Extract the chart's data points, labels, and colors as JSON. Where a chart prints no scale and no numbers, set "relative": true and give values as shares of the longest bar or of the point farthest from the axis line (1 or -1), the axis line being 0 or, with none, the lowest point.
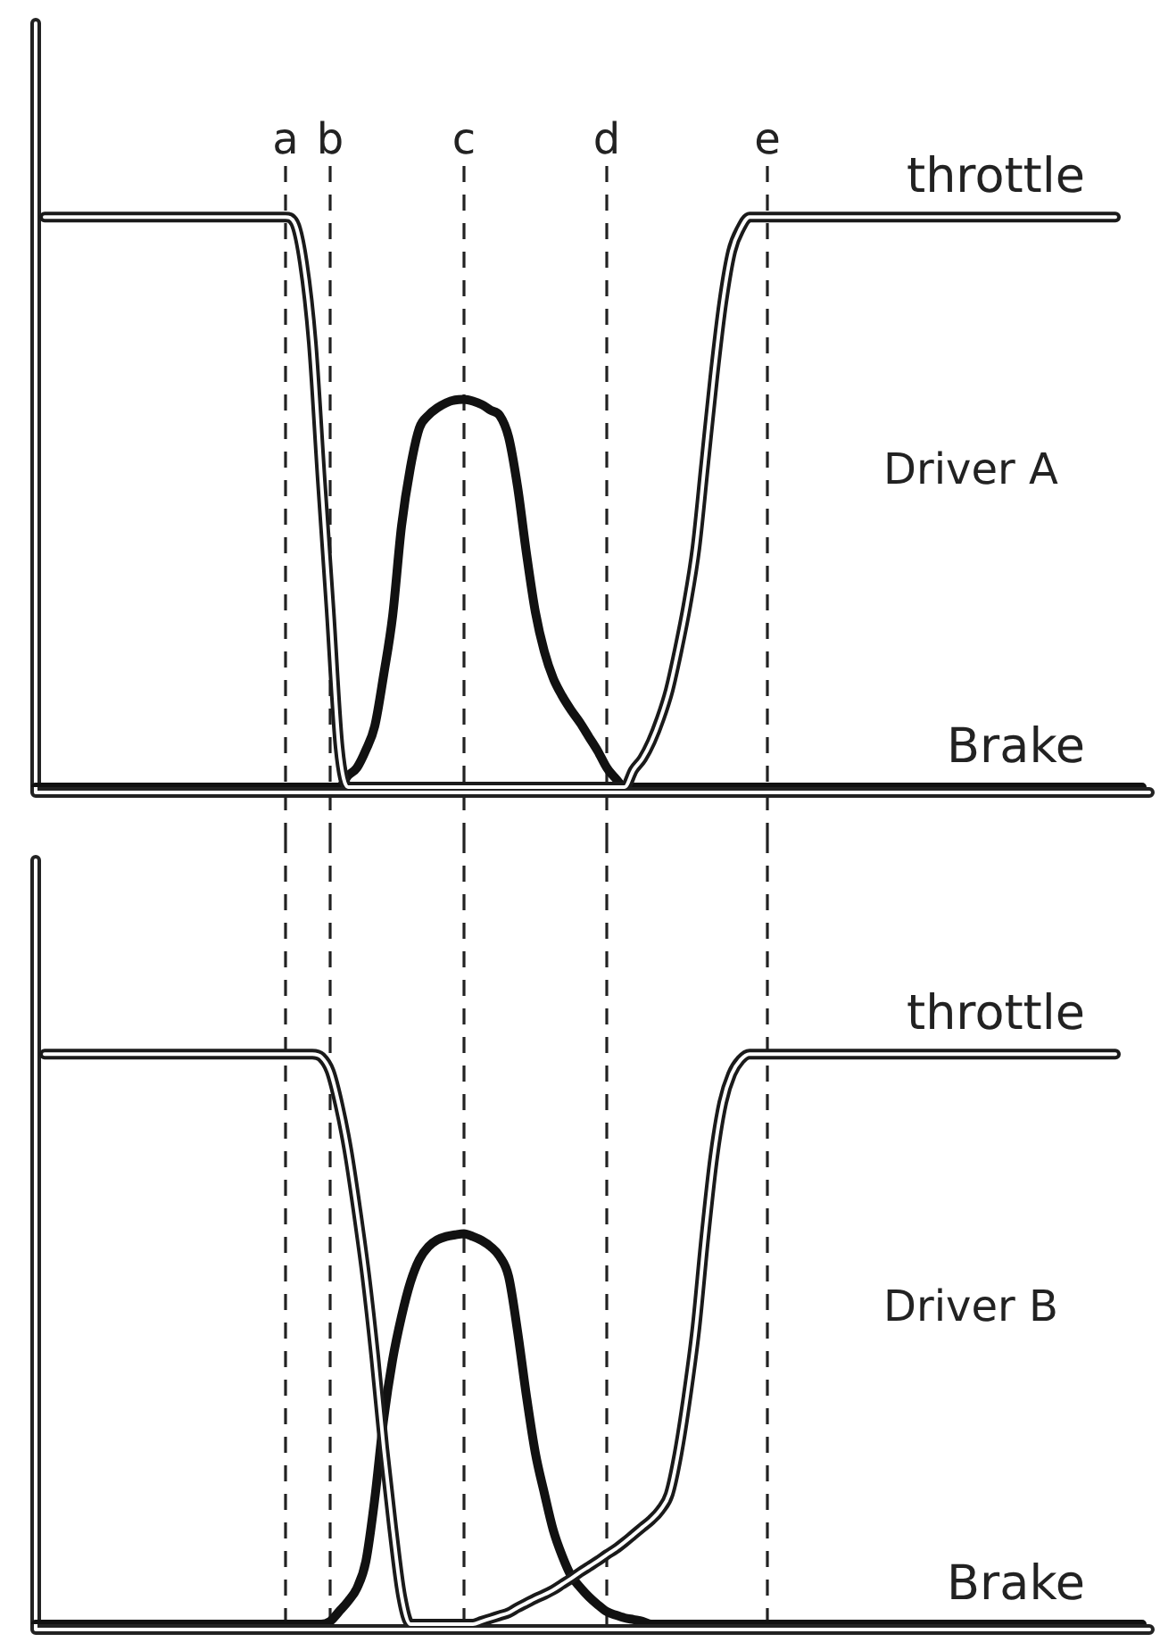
{
  "chart_data": [
    {
      "type": "line",
      "title": "Driver A",
      "relative": true,
      "legend": false,
      "grid": false,
      "marker": "none",
      "tick_labels": false,
      "annotations": [
        "a",
        "b",
        "c",
        "d",
        "e"
      ],
      "categories": [
        null,
        null,
        null,
        null,
        null,
        null,
        null,
        null,
        null,
        null,
        null,
        null,
        null,
        null,
        null,
        null,
        null,
        null,
        null,
        null,
        null,
        null,
        null,
        null,
        null,
        null,
        null,
        null,
        null,
        null,
        null,
        null,
        null,
        null,
        null,
        null,
        null,
        null,
        null,
        null,
        null,
        null,
        null,
        null,
        null,
        null,
        null,
        null,
        null,
        null,
        null,
        null,
        null,
        null,
        null,
        null,
        null,
        null,
        null,
        null,
        null,
        null,
        null,
        null,
        null,
        null,
        null,
        null,
        null,
        null,
        null,
        null,
        null,
        null,
        null,
        null,
        null,
        null,
        null,
        null,
        null,
        null,
        null,
        null,
        null,
        null,
        null,
        null,
        null,
        null,
        null,
        null,
        null,
        null,
        null,
        null,
        null,
        null,
        null,
        null,
        null,
        null,
        null,
        null,
        null,
        null,
        null,
        null,
        null,
        null,
        null,
        null,
        null,
        null,
        null,
        null,
        null,
        null,
        null,
        null,
        null,
        null,
        null,
        null,
        null
      ],
      "series": [
        {
          "name": "throttle",
          "color": "#1a1a1a",
          "values": [
            null,
            1,
            1,
            1,
            1,
            1,
            1,
            1,
            1,
            1,
            1,
            1,
            1,
            1,
            1,
            1,
            1,
            1,
            1,
            1,
            1,
            1,
            1,
            1,
            1,
            1,
            1,
            1,
            1,
            0.99,
            0.92,
            0.78,
            0.54,
            0.31,
            0.07,
            0,
            0,
            0,
            0,
            0,
            0,
            0,
            0,
            0,
            0,
            0,
            0,
            0,
            0,
            0,
            0,
            0,
            0,
            0,
            0,
            0,
            0,
            0,
            0,
            0,
            0,
            0,
            0,
            0,
            0,
            0,
            0,
            0.03,
            0.05,
            0.08,
            0.12,
            0.17,
            0.24,
            0.32,
            0.42,
            0.57,
            0.72,
            0.85,
            0.94,
            0.98,
            1,
            1,
            1,
            1,
            1,
            1,
            1,
            1,
            1,
            1,
            1,
            1,
            1,
            1,
            1,
            1,
            1,
            1,
            1,
            1,
            1,
            1,
            1,
            1,
            1,
            1,
            1,
            1,
            1,
            1,
            1,
            1,
            1,
            1,
            1,
            1,
            1,
            1,
            1,
            1,
            1,
            1,
            null,
            null,
            null
          ]
        },
        {
          "name": "Brake",
          "color": "#111111",
          "values": [
            0,
            0,
            0,
            0,
            0,
            0,
            0,
            0,
            0,
            0,
            0,
            0,
            0,
            0,
            0,
            0,
            0,
            0,
            0,
            0,
            0,
            0,
            0,
            0,
            0,
            0,
            0,
            0,
            0,
            0,
            0,
            0,
            0,
            0,
            0,
            0.02,
            0.034,
            0.065,
            0.107,
            0.197,
            0.3,
            0.458,
            0.561,
            0.63,
            0.652,
            0.665,
            0.674,
            0.679,
            0.68,
            0.677,
            0.671,
            0.661,
            0.652,
            0.614,
            0.527,
            0.41,
            0.307,
            0.238,
            0.191,
            0.16,
            0.135,
            0.113,
            0.088,
            0.063,
            0.034,
            0.015,
            0,
            0,
            0,
            0,
            0,
            0,
            0,
            0,
            0,
            0,
            0,
            0,
            0,
            0,
            0,
            0,
            0,
            0,
            0,
            0,
            0,
            0,
            0,
            0,
            0,
            0,
            0,
            0,
            0,
            0,
            0,
            0,
            0,
            0,
            0,
            0,
            0,
            0,
            0,
            0,
            0,
            0,
            0,
            0,
            0,
            0,
            0,
            0,
            0,
            0,
            0,
            0,
            0,
            0,
            0,
            0,
            0,
            0,
            0
          ]
        }
      ]
    },
    {
      "type": "line",
      "title": "Driver B",
      "relative": true,
      "legend": false,
      "grid": false,
      "marker": "none",
      "tick_labels": false,
      "categories": [
        null,
        null,
        null,
        null,
        null,
        null,
        null,
        null,
        null,
        null,
        null,
        null,
        null,
        null,
        null,
        null,
        null,
        null,
        null,
        null,
        null,
        null,
        null,
        null,
        null,
        null,
        null,
        null,
        null,
        null,
        null,
        null,
        null,
        null,
        null,
        null,
        null,
        null,
        null,
        null,
        null,
        null,
        null,
        null,
        null,
        null,
        null,
        null,
        null,
        null,
        null,
        null,
        null,
        null,
        null,
        null,
        null,
        null,
        null,
        null,
        null,
        null,
        null,
        null,
        null,
        null,
        null,
        null,
        null,
        null,
        null,
        null,
        null,
        null,
        null,
        null,
        null,
        null,
        null,
        null,
        null,
        null,
        null,
        null,
        null,
        null,
        null,
        null,
        null,
        null,
        null,
        null,
        null,
        null,
        null,
        null,
        null,
        null,
        null,
        null,
        null,
        null,
        null,
        null,
        null,
        null,
        null,
        null,
        null,
        null,
        null,
        null,
        null,
        null,
        null,
        null,
        null,
        null,
        null,
        null,
        null,
        null,
        null,
        null,
        null
      ],
      "series": [
        {
          "name": "throttle",
          "color": "#1a1a1a",
          "values": [
            null,
            1,
            1,
            1,
            1,
            1,
            1,
            1,
            1,
            1,
            1,
            1,
            1,
            1,
            1,
            1,
            1,
            1,
            1,
            1,
            1,
            1,
            1,
            1,
            1,
            1,
            1,
            1,
            1,
            1,
            1,
            1,
            0.995,
            0.97,
            0.91,
            0.83,
            0.726,
            0.61,
            0.47,
            0.31,
            0.17,
            0.05,
            0,
            0,
            0,
            0,
            0,
            0,
            0,
            0,
            0.005,
            0.01,
            0.015,
            0.02,
            0.029,
            0.037,
            0.045,
            0.052,
            0.06,
            0.07,
            0.08,
            0.091,
            0.101,
            0.111,
            0.122,
            0.132,
            0.144,
            0.157,
            0.17,
            0.183,
            0.2,
            0.228,
            0.3,
            0.4,
            0.52,
            0.68,
            0.82,
            0.915,
            0.965,
            0.99,
            1,
            1,
            1,
            1,
            1,
            1,
            1,
            1,
            1,
            1,
            1,
            1,
            1,
            1,
            1,
            1,
            1,
            1,
            1,
            1,
            1,
            1,
            1,
            1,
            1,
            1,
            1,
            1,
            1,
            1,
            1,
            1,
            1,
            1,
            1,
            1,
            1,
            1,
            1,
            1,
            1,
            1,
            null,
            null,
            null
          ]
        },
        {
          "name": "Brake",
          "color": "#111111",
          "values": [
            0,
            0,
            0,
            0,
            0,
            0,
            0,
            0,
            0,
            0,
            0,
            0,
            0,
            0,
            0,
            0,
            0,
            0,
            0,
            0,
            0,
            0,
            0,
            0,
            0,
            0,
            0,
            0,
            0,
            0,
            0,
            0,
            0,
            0.005,
            0.022,
            0.04,
            0.063,
            0.11,
            0.22,
            0.36,
            0.464,
            0.54,
            0.6,
            0.64,
            0.662,
            0.674,
            0.68,
            0.683,
            0.685,
            0.68,
            0.673,
            0.662,
            0.645,
            0.61,
            0.514,
            0.4,
            0.3,
            0.23,
            0.165,
            0.12,
            0.085,
            0.065,
            0.048,
            0.034,
            0.022,
            0.016,
            0.011,
            0.008,
            0.005,
            0,
            0,
            0,
            0,
            0,
            0,
            0,
            0,
            0,
            0,
            0,
            0,
            0,
            0,
            0,
            0,
            0,
            0,
            0,
            0,
            0,
            0,
            0,
            0,
            0,
            0,
            0,
            0,
            0,
            0,
            0,
            0,
            0,
            0,
            0,
            0,
            0,
            0,
            0,
            0,
            0,
            0,
            0,
            0,
            0,
            0,
            0,
            0,
            0,
            0,
            0,
            0,
            0,
            0,
            0,
            0
          ]
        }
      ]
    }
  ]
}
